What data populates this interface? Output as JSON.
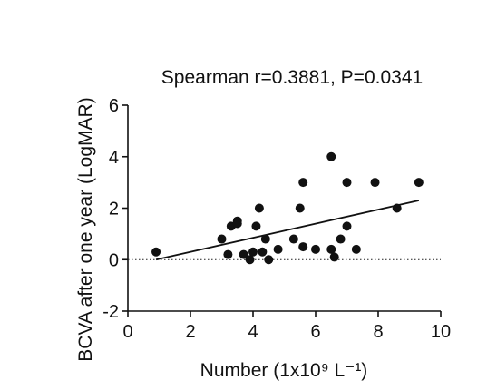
{
  "chart_data": {
    "type": "scatter",
    "title": "Spearman r=0.3881, P=0.0341",
    "xlabel": "Number (1x10⁹ L⁻¹)",
    "ylabel": "BCVA after one year (LogMAR)",
    "xlim": [
      0,
      10
    ],
    "ylim": [
      -2,
      6
    ],
    "x_ticks": [
      0,
      2,
      4,
      6,
      8,
      10
    ],
    "y_ticks": [
      -2,
      0,
      2,
      4,
      6
    ],
    "x_tick_labels": [
      "0",
      "2",
      "4",
      "6",
      "8",
      "10"
    ],
    "y_tick_labels": [
      "-2",
      "0",
      "2",
      "4",
      "6"
    ],
    "grid": false,
    "reference_line": {
      "y": 0,
      "style": "dotted"
    },
    "regression_line": {
      "x": [
        0.9,
        9.3
      ],
      "y": [
        0.0,
        2.3
      ]
    },
    "points": [
      {
        "x": 0.9,
        "y": 0.3
      },
      {
        "x": 3.0,
        "y": 0.8
      },
      {
        "x": 3.2,
        "y": 0.2
      },
      {
        "x": 3.3,
        "y": 1.3
      },
      {
        "x": 3.5,
        "y": 1.5
      },
      {
        "x": 3.5,
        "y": 1.4
      },
      {
        "x": 3.7,
        "y": 0.2
      },
      {
        "x": 3.9,
        "y": 0.0
      },
      {
        "x": 4.0,
        "y": 0.3
      },
      {
        "x": 4.1,
        "y": 1.3
      },
      {
        "x": 4.2,
        "y": 2.0
      },
      {
        "x": 4.3,
        "y": 0.3
      },
      {
        "x": 4.4,
        "y": 0.8
      },
      {
        "x": 4.5,
        "y": 0.0
      },
      {
        "x": 4.8,
        "y": 0.4
      },
      {
        "x": 5.3,
        "y": 0.8
      },
      {
        "x": 5.5,
        "y": 2.0
      },
      {
        "x": 5.6,
        "y": 3.0
      },
      {
        "x": 5.6,
        "y": 0.5
      },
      {
        "x": 6.0,
        "y": 0.4
      },
      {
        "x": 6.5,
        "y": 4.0
      },
      {
        "x": 6.5,
        "y": 0.4
      },
      {
        "x": 6.6,
        "y": 0.1
      },
      {
        "x": 6.8,
        "y": 0.8
      },
      {
        "x": 7.0,
        "y": 1.3
      },
      {
        "x": 7.0,
        "y": 3.0
      },
      {
        "x": 7.3,
        "y": 0.4
      },
      {
        "x": 7.9,
        "y": 3.0
      },
      {
        "x": 8.6,
        "y": 2.0
      },
      {
        "x": 9.3,
        "y": 3.0
      }
    ]
  }
}
